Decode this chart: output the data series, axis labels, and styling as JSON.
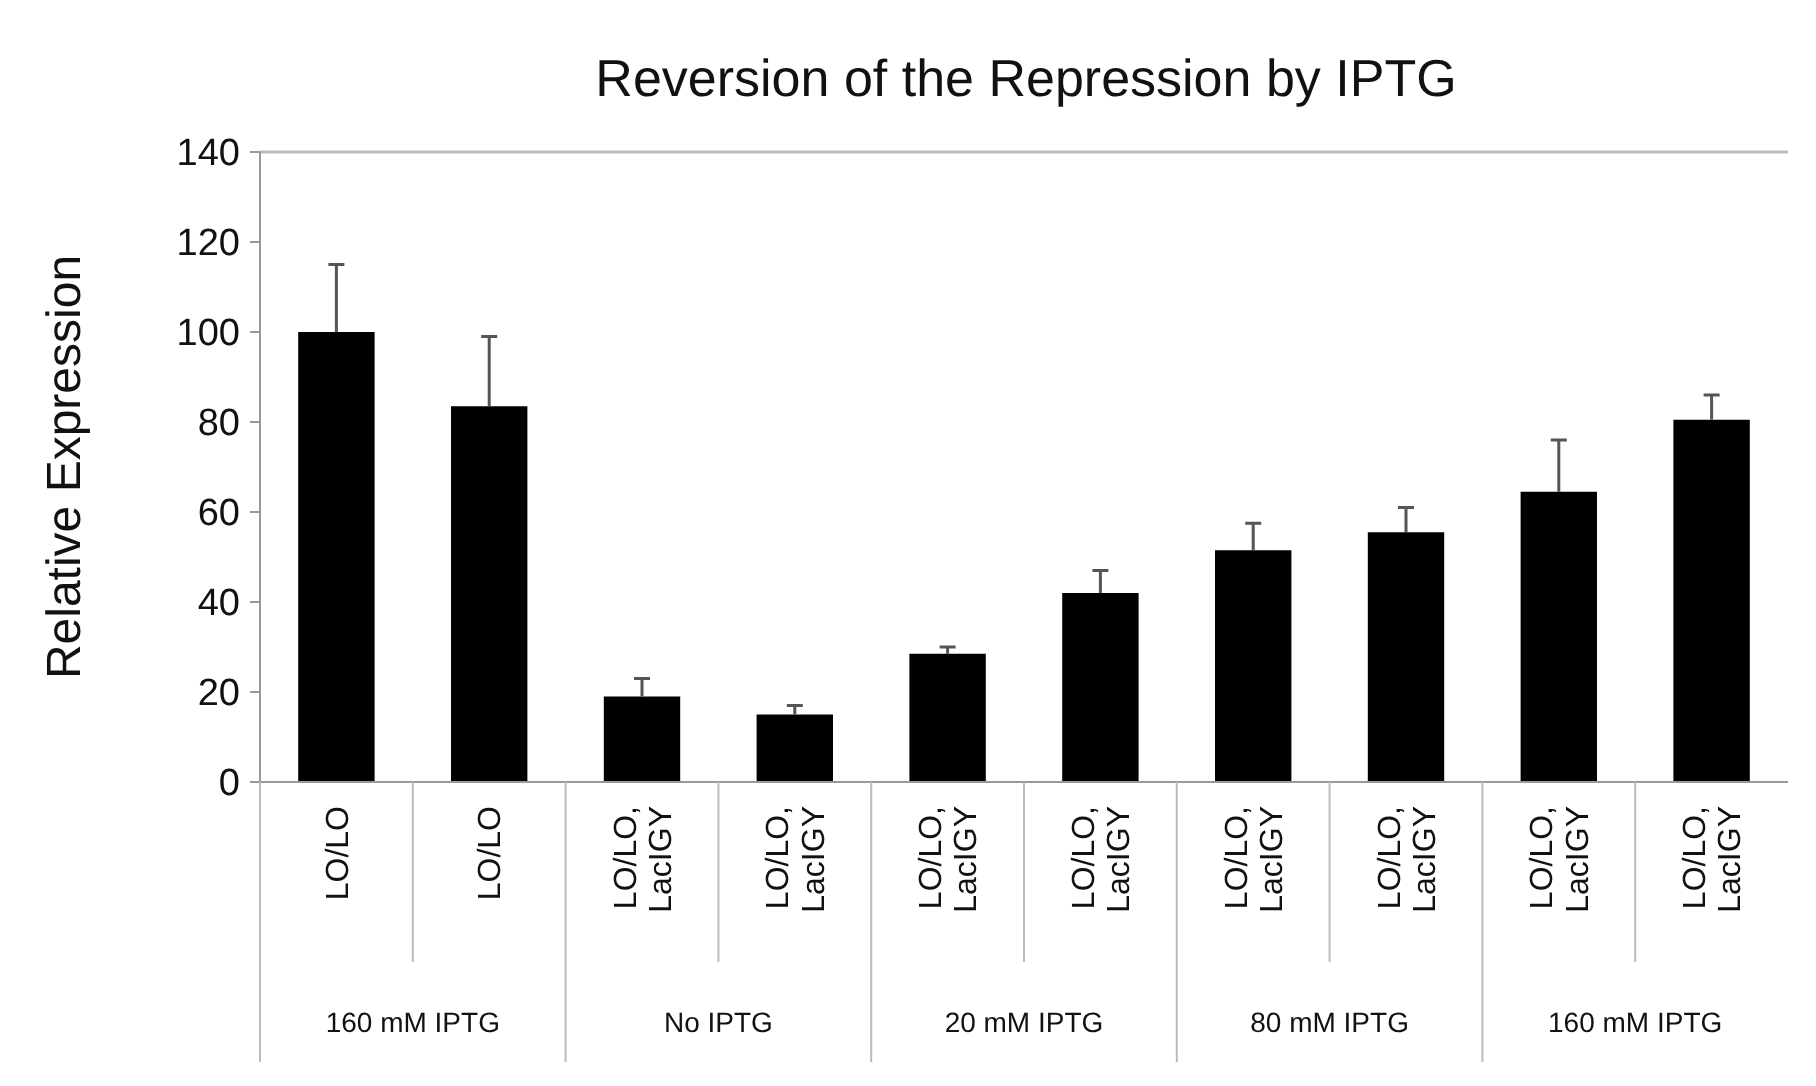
{
  "chart_data": {
    "type": "bar",
    "title": "Reversion of the Repression by IPTG",
    "ylabel": "Relative Expression",
    "categories": [
      "LO/LO",
      "LO/LO",
      "LO/LO, LacIGY",
      "LO/LO, LacIGY",
      "LO/LO, LacIGY",
      "LO/LO, LacIGY",
      "LO/LO, LacIGY",
      "LO/LO, LacIGY",
      "LO/LO, LacIGY",
      "LO/LO, LacIGY"
    ],
    "values": [
      100,
      83.5,
      19,
      15,
      28.5,
      42,
      51.5,
      55.5,
      64.5,
      80.5
    ],
    "errors": [
      [
        100,
        115
      ],
      [
        83.5,
        99
      ],
      [
        19,
        23
      ],
      [
        15,
        17
      ],
      [
        28.5,
        30
      ],
      [
        42,
        47
      ],
      [
        51.5,
        57.5
      ],
      [
        55.5,
        61
      ],
      [
        64.5,
        76
      ],
      [
        80.5,
        86
      ]
    ],
    "color": "#000000",
    "ylim": [
      0,
      140
    ],
    "yticks": [
      0,
      20,
      40,
      60,
      80,
      100,
      120,
      140
    ],
    "grid": false,
    "annotations": [
      "160 mM IPTG",
      "No IPTG",
      "20 mM IPTG",
      "80 mM IPTG",
      "160 mM IPTG"
    ]
  }
}
